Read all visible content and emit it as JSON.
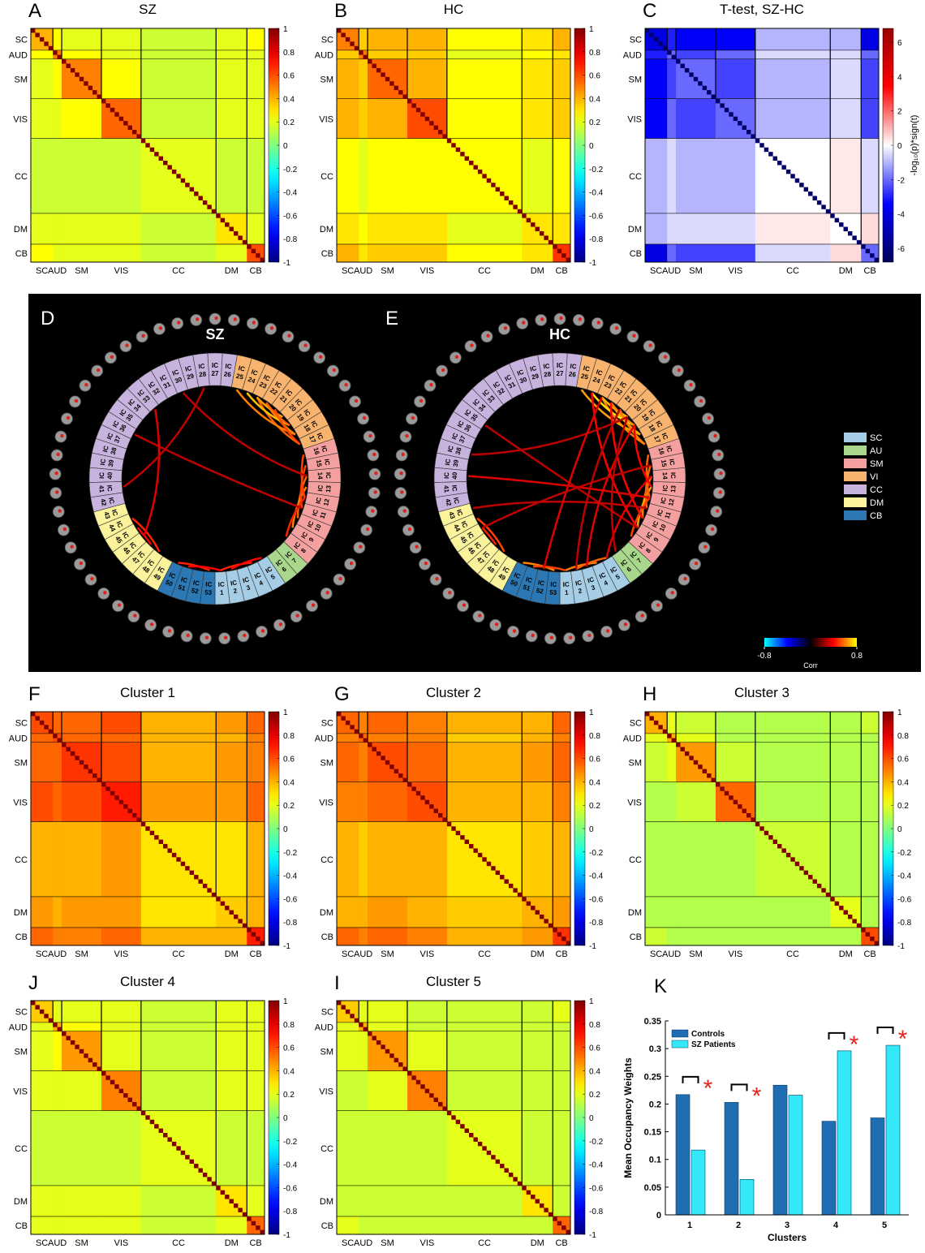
{
  "networks": {
    "names": [
      "SC",
      "AUD",
      "SM",
      "VIS",
      "CC",
      "DM",
      "CB"
    ],
    "sizes": [
      5,
      2,
      9,
      9,
      17,
      7,
      4
    ],
    "colors": [
      "#a6cde6",
      "#a9d88c",
      "#f4a0a0",
      "#f8b46e",
      "#c7b3dd",
      "#fbf39c",
      "#2b78b4"
    ]
  },
  "chart_data": [
    {
      "type": "heatmap",
      "panel": "A",
      "title": "SZ",
      "colormap": "jet",
      "zlim": [
        -1,
        1
      ],
      "zticks": [
        1,
        0.8,
        0.6,
        0.4,
        0.2,
        0,
        -0.2,
        -0.4,
        -0.6,
        -0.8,
        -1
      ],
      "diagonal": 1,
      "matrix": [
        [
          0.4,
          0.25,
          0.2,
          0.2,
          0.15,
          0.2,
          0.25
        ],
        [
          0.25,
          0.5,
          0.25,
          0.2,
          0.15,
          0.2,
          0.2
        ],
        [
          0.2,
          0.25,
          0.5,
          0.25,
          0.15,
          0.2,
          0.2
        ],
        [
          0.2,
          0.2,
          0.25,
          0.55,
          0.15,
          0.2,
          0.2
        ],
        [
          0.15,
          0.15,
          0.15,
          0.15,
          0.2,
          0.15,
          0.15
        ],
        [
          0.2,
          0.2,
          0.2,
          0.2,
          0.15,
          0.3,
          0.2
        ],
        [
          0.25,
          0.2,
          0.2,
          0.2,
          0.15,
          0.2,
          0.6
        ]
      ]
    },
    {
      "type": "heatmap",
      "panel": "B",
      "title": "HC",
      "colormap": "jet",
      "zlim": [
        -1,
        1
      ],
      "zticks": [
        1,
        0.8,
        0.6,
        0.4,
        0.2,
        0,
        -0.2,
        -0.4,
        -0.6,
        -0.8,
        -1
      ],
      "diagonal": 1,
      "matrix": [
        [
          0.5,
          0.35,
          0.4,
          0.4,
          0.25,
          0.3,
          0.4
        ],
        [
          0.35,
          0.5,
          0.35,
          0.35,
          0.2,
          0.25,
          0.3
        ],
        [
          0.4,
          0.35,
          0.55,
          0.4,
          0.25,
          0.3,
          0.35
        ],
        [
          0.4,
          0.35,
          0.4,
          0.6,
          0.25,
          0.3,
          0.35
        ],
        [
          0.25,
          0.2,
          0.25,
          0.25,
          0.25,
          0.2,
          0.25
        ],
        [
          0.3,
          0.25,
          0.3,
          0.3,
          0.2,
          0.3,
          0.3
        ],
        [
          0.4,
          0.3,
          0.35,
          0.35,
          0.25,
          0.3,
          0.65
        ]
      ]
    },
    {
      "type": "heatmap",
      "panel": "C",
      "title": "T-test, SZ-HC",
      "colormap": "bwr",
      "zlim": [
        -6.8,
        6.8
      ],
      "zticks": [
        6,
        4,
        2,
        0,
        -2,
        -4,
        -6
      ],
      "zlabel": "-log₁₀(p)*sign(t)",
      "diagonal": -6.5,
      "matrix": [
        [
          -4,
          -3,
          -3.5,
          -3.5,
          -1,
          -1,
          -4
        ],
        [
          -3,
          -2,
          -2.5,
          -2,
          -0.5,
          -0.5,
          -2
        ],
        [
          -3.5,
          -2.5,
          -2,
          -2.5,
          -1,
          -0.5,
          -2.5
        ],
        [
          -3.5,
          -2,
          -2.5,
          -2,
          -1,
          -0.5,
          -2.5
        ],
        [
          -1,
          -0.5,
          -1,
          -1,
          0,
          0.3,
          -0.5
        ],
        [
          -1,
          -0.5,
          -0.5,
          -0.5,
          0.3,
          0,
          0.5
        ],
        [
          -4,
          -2,
          -2.5,
          -2.5,
          -0.5,
          0.5,
          -2
        ]
      ]
    },
    {
      "type": "connectogram",
      "panel": "D",
      "title": "SZ",
      "ic_prefix": "IC",
      "components": [
        1,
        2,
        3,
        4,
        5,
        6,
        7,
        8,
        9,
        10,
        11,
        12,
        13,
        14,
        15,
        16,
        17,
        18,
        19,
        20,
        21,
        22,
        23,
        24,
        25,
        26,
        27,
        28,
        29,
        30,
        31,
        32,
        33,
        34,
        35,
        36,
        37,
        38,
        39,
        40,
        41,
        42,
        43,
        44,
        45,
        46,
        47,
        48,
        49,
        50,
        51,
        52,
        53
      ],
      "zlim": [
        -0.8,
        0.8
      ],
      "links": [
        {
          "from": 18,
          "to": 22,
          "value": 0.6
        },
        {
          "from": 17,
          "to": 23,
          "value": 0.55
        },
        {
          "from": 19,
          "to": 24,
          "value": 0.7
        },
        {
          "from": 18,
          "to": 25,
          "value": 0.6
        },
        {
          "from": 20,
          "to": 23,
          "value": 0.65
        },
        {
          "from": 17,
          "to": 21,
          "value": 0.5
        },
        {
          "from": 19,
          "to": 22,
          "value": 0.55
        },
        {
          "from": 10,
          "to": 14,
          "value": 0.55
        },
        {
          "from": 9,
          "to": 13,
          "value": 0.6
        },
        {
          "from": 11,
          "to": 15,
          "value": 0.5
        },
        {
          "from": 8,
          "to": 12,
          "value": 0.45
        },
        {
          "from": 12,
          "to": 16,
          "value": 0.5
        },
        {
          "from": 1,
          "to": 4,
          "value": 0.45
        },
        {
          "from": 2,
          "to": 5,
          "value": 0.4
        },
        {
          "from": 50,
          "to": 53,
          "value": 0.45
        },
        {
          "from": 51,
          "to": 1,
          "value": 0.4
        },
        {
          "from": 48,
          "to": 44,
          "value": 0.45
        },
        {
          "from": 47,
          "to": 45,
          "value": 0.4
        },
        {
          "from": 36,
          "to": 11,
          "value": 0.3
        },
        {
          "from": 33,
          "to": 46,
          "value": 0.35
        },
        {
          "from": 28,
          "to": 41,
          "value": 0.3
        },
        {
          "from": 30,
          "to": 14,
          "value": 0.3
        }
      ]
    },
    {
      "type": "connectogram",
      "panel": "E",
      "title": "HC",
      "ic_prefix": "IC",
      "components": [
        1,
        2,
        3,
        4,
        5,
        6,
        7,
        8,
        9,
        10,
        11,
        12,
        13,
        14,
        15,
        16,
        17,
        18,
        19,
        20,
        21,
        22,
        23,
        24,
        25,
        26,
        27,
        28,
        29,
        30,
        31,
        32,
        33,
        34,
        35,
        36,
        37,
        38,
        39,
        40,
        41,
        42,
        43,
        44,
        45,
        46,
        47,
        48,
        49,
        50,
        51,
        52,
        53
      ],
      "zlim": [
        -0.8,
        0.8
      ],
      "zticks": [
        -0.8,
        0.8
      ],
      "zlabel": "Corr",
      "legend": [
        "SC",
        "AU",
        "SM",
        "VI",
        "CC",
        "DM",
        "CB"
      ],
      "links": [
        {
          "from": 18,
          "to": 22,
          "value": 0.7
        },
        {
          "from": 17,
          "to": 23,
          "value": 0.6
        },
        {
          "from": 19,
          "to": 24,
          "value": 0.75
        },
        {
          "from": 18,
          "to": 25,
          "value": 0.65
        },
        {
          "from": 20,
          "to": 23,
          "value": 0.7
        },
        {
          "from": 17,
          "to": 21,
          "value": 0.6
        },
        {
          "from": 19,
          "to": 22,
          "value": 0.6
        },
        {
          "from": 10,
          "to": 14,
          "value": 0.6
        },
        {
          "from": 9,
          "to": 13,
          "value": 0.65
        },
        {
          "from": 11,
          "to": 15,
          "value": 0.55
        },
        {
          "from": 8,
          "to": 12,
          "value": 0.5
        },
        {
          "from": 12,
          "to": 16,
          "value": 0.55
        },
        {
          "from": 1,
          "to": 4,
          "value": 0.6
        },
        {
          "from": 2,
          "to": 5,
          "value": 0.55
        },
        {
          "from": 50,
          "to": 53,
          "value": 0.6
        },
        {
          "from": 51,
          "to": 1,
          "value": 0.5
        },
        {
          "from": 48,
          "to": 44,
          "value": 0.5
        },
        {
          "from": 47,
          "to": 45,
          "value": 0.45
        },
        {
          "from": 24,
          "to": 9,
          "value": 0.4
        },
        {
          "from": 22,
          "to": 10,
          "value": 0.4
        },
        {
          "from": 19,
          "to": 13,
          "value": 0.4
        },
        {
          "from": 40,
          "to": 12,
          "value": 0.35
        },
        {
          "from": 38,
          "to": 20,
          "value": 0.3
        },
        {
          "from": 43,
          "to": 11,
          "value": 0.3
        },
        {
          "from": 35,
          "to": 9,
          "value": 0.3
        },
        {
          "from": 3,
          "to": 19,
          "value": 0.35
        },
        {
          "from": 5,
          "to": 14,
          "value": 0.35
        },
        {
          "from": 6,
          "to": 20,
          "value": 0.3
        },
        {
          "from": 52,
          "to": 23,
          "value": 0.35
        },
        {
          "from": 2,
          "to": 21,
          "value": 0.3
        },
        {
          "from": 45,
          "to": 15,
          "value": 0.3
        }
      ]
    },
    {
      "type": "heatmap",
      "panel": "F",
      "title": "Cluster 1",
      "colormap": "jet",
      "zlim": [
        -1,
        1
      ],
      "zticks": [
        1,
        0.8,
        0.6,
        0.4,
        0.2,
        0,
        -0.2,
        -0.4,
        -0.6,
        -0.8,
        -1
      ],
      "diagonal": 1,
      "matrix": [
        [
          0.6,
          0.55,
          0.55,
          0.6,
          0.4,
          0.45,
          0.55
        ],
        [
          0.55,
          0.6,
          0.55,
          0.55,
          0.4,
          0.4,
          0.5
        ],
        [
          0.55,
          0.55,
          0.65,
          0.6,
          0.4,
          0.45,
          0.5
        ],
        [
          0.6,
          0.55,
          0.6,
          0.7,
          0.45,
          0.45,
          0.55
        ],
        [
          0.4,
          0.4,
          0.4,
          0.45,
          0.3,
          0.3,
          0.4
        ],
        [
          0.45,
          0.4,
          0.45,
          0.45,
          0.3,
          0.35,
          0.4
        ],
        [
          0.55,
          0.5,
          0.5,
          0.55,
          0.4,
          0.4,
          0.7
        ]
      ]
    },
    {
      "type": "heatmap",
      "panel": "G",
      "title": "Cluster 2",
      "colormap": "jet",
      "zlim": [
        -1,
        1
      ],
      "zticks": [
        1,
        0.8,
        0.6,
        0.4,
        0.2,
        0,
        -0.2,
        -0.4,
        -0.6,
        -0.8,
        -1
      ],
      "diagonal": 1,
      "matrix": [
        [
          0.55,
          0.5,
          0.55,
          0.5,
          0.4,
          0.4,
          0.55
        ],
        [
          0.5,
          0.55,
          0.5,
          0.5,
          0.35,
          0.4,
          0.5
        ],
        [
          0.55,
          0.5,
          0.6,
          0.55,
          0.4,
          0.45,
          0.55
        ],
        [
          0.5,
          0.5,
          0.55,
          0.6,
          0.4,
          0.4,
          0.5
        ],
        [
          0.4,
          0.35,
          0.4,
          0.4,
          0.3,
          0.35,
          0.4
        ],
        [
          0.4,
          0.4,
          0.45,
          0.4,
          0.35,
          0.4,
          0.45
        ],
        [
          0.55,
          0.5,
          0.55,
          0.5,
          0.4,
          0.45,
          0.65
        ]
      ]
    },
    {
      "type": "heatmap",
      "panel": "H",
      "title": "Cluster 3",
      "colormap": "jet",
      "zlim": [
        -1,
        1
      ],
      "zticks": [
        1,
        0.8,
        0.6,
        0.4,
        0.2,
        0,
        -0.2,
        -0.4,
        -0.6,
        -0.8,
        -1
      ],
      "diagonal": 1,
      "matrix": [
        [
          0.4,
          0.2,
          0.15,
          0.1,
          0.1,
          0.1,
          0.15
        ],
        [
          0.2,
          0.4,
          0.2,
          0.1,
          0.1,
          0.1,
          0.1
        ],
        [
          0.15,
          0.2,
          0.45,
          0.15,
          0.1,
          0.1,
          0.1
        ],
        [
          0.1,
          0.1,
          0.15,
          0.55,
          0.1,
          0.1,
          0.1
        ],
        [
          0.1,
          0.1,
          0.1,
          0.1,
          0.15,
          0.1,
          0.1
        ],
        [
          0.1,
          0.1,
          0.1,
          0.1,
          0.1,
          0.2,
          0.1
        ],
        [
          0.15,
          0.1,
          0.1,
          0.1,
          0.1,
          0.1,
          0.6
        ]
      ]
    },
    {
      "type": "heatmap",
      "panel": "J",
      "title": "Cluster 4",
      "colormap": "jet",
      "zlim": [
        -1,
        1
      ],
      "zticks": [
        1,
        0.8,
        0.6,
        0.4,
        0.2,
        0,
        -0.2,
        -0.4,
        -0.6,
        -0.8,
        -1
      ],
      "diagonal": 1,
      "matrix": [
        [
          0.35,
          0.2,
          0.2,
          0.2,
          0.15,
          0.2,
          0.2
        ],
        [
          0.2,
          0.4,
          0.25,
          0.2,
          0.15,
          0.2,
          0.2
        ],
        [
          0.2,
          0.25,
          0.45,
          0.2,
          0.15,
          0.2,
          0.2
        ],
        [
          0.2,
          0.2,
          0.2,
          0.5,
          0.15,
          0.2,
          0.2
        ],
        [
          0.15,
          0.15,
          0.15,
          0.15,
          0.2,
          0.15,
          0.15
        ],
        [
          0.2,
          0.2,
          0.2,
          0.2,
          0.15,
          0.3,
          0.2
        ],
        [
          0.2,
          0.2,
          0.2,
          0.2,
          0.15,
          0.2,
          0.55
        ]
      ]
    },
    {
      "type": "heatmap",
      "panel": "I",
      "title": "Cluster 5",
      "colormap": "jet",
      "zlim": [
        -1,
        1
      ],
      "zticks": [
        1,
        0.8,
        0.6,
        0.4,
        0.2,
        0,
        -0.2,
        -0.4,
        -0.6,
        -0.8,
        -1
      ],
      "diagonal": 1,
      "matrix": [
        [
          0.35,
          0.2,
          0.2,
          0.15,
          0.15,
          0.15,
          0.2
        ],
        [
          0.2,
          0.4,
          0.2,
          0.15,
          0.15,
          0.15,
          0.15
        ],
        [
          0.2,
          0.2,
          0.45,
          0.2,
          0.15,
          0.15,
          0.15
        ],
        [
          0.15,
          0.15,
          0.2,
          0.5,
          0.15,
          0.15,
          0.15
        ],
        [
          0.15,
          0.15,
          0.15,
          0.15,
          0.2,
          0.15,
          0.15
        ],
        [
          0.15,
          0.15,
          0.15,
          0.15,
          0.15,
          0.3,
          0.15
        ],
        [
          0.2,
          0.15,
          0.15,
          0.15,
          0.15,
          0.15,
          0.55
        ]
      ]
    },
    {
      "type": "bar",
      "panel": "K",
      "xlabel": "Clusters",
      "ylabel": "Mean Occupancy Weights",
      "categories": [
        "1",
        "2",
        "3",
        "4",
        "5"
      ],
      "series": [
        {
          "name": "Controls",
          "color": "#1f6db3",
          "values": [
            0.217,
            0.203,
            0.234,
            0.169,
            0.175
          ]
        },
        {
          "name": "SZ Patients",
          "color": "#33e9f7",
          "values": [
            0.117,
            0.064,
            0.216,
            0.296,
            0.306
          ]
        }
      ],
      "ylim": [
        0,
        0.35
      ],
      "yticks": [
        0,
        0.05,
        0.1,
        0.15,
        0.2,
        0.25,
        0.3,
        0.35
      ],
      "significant": [
        true,
        true,
        false,
        true,
        true
      ],
      "annotation": "*",
      "legend": "upper-left"
    }
  ]
}
